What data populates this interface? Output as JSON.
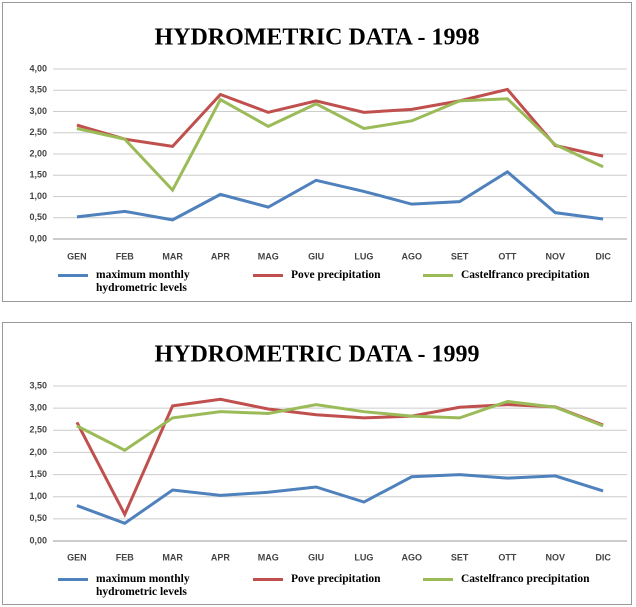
{
  "chart_data": [
    {
      "type": "line",
      "title": "HYDROMETRIC DATA - 1998",
      "categories": [
        "GEN",
        "FEB",
        "MAR",
        "APR",
        "MAG",
        "GIU",
        "LUG",
        "AGO",
        "SET",
        "OTT",
        "NOV",
        "DIC"
      ],
      "series": [
        {
          "name": "maximum monthly hydrometric levels",
          "color": "#4f81bd",
          "values": [
            0.52,
            0.65,
            0.45,
            1.05,
            0.75,
            1.38,
            1.12,
            0.82,
            0.88,
            1.58,
            0.62,
            0.47
          ]
        },
        {
          "name": "Pove precipitation",
          "color": "#c0504d",
          "values": [
            2.68,
            2.35,
            2.18,
            3.4,
            2.98,
            3.25,
            2.98,
            3.05,
            3.25,
            3.52,
            2.2,
            1.95
          ]
        },
        {
          "name": "Castelfranco precipitation",
          "color": "#9bbb59",
          "values": [
            2.6,
            2.35,
            1.15,
            3.28,
            2.65,
            3.18,
            2.6,
            2.78,
            3.25,
            3.3,
            2.22,
            1.7
          ]
        }
      ],
      "ylim": [
        0,
        4
      ],
      "yticks": [
        {
          "value": 0,
          "label": "0,00"
        },
        {
          "value": 0.5,
          "label": "0,50"
        },
        {
          "value": 1,
          "label": "1,00"
        },
        {
          "value": 1.5,
          "label": "1,50"
        },
        {
          "value": 2,
          "label": "2,00"
        },
        {
          "value": 2.5,
          "label": "2,50"
        },
        {
          "value": 3,
          "label": "3,00"
        },
        {
          "value": 3.5,
          "label": "3,50"
        },
        {
          "value": 4,
          "label": "4,00"
        }
      ],
      "grid": true,
      "legend": "bottom"
    },
    {
      "type": "line",
      "title": "HYDROMETRIC DATA - 1999",
      "categories": [
        "GEN",
        "FEB",
        "MAR",
        "APR",
        "MAG",
        "GIU",
        "LUG",
        "AGO",
        "SET",
        "OTT",
        "NOV",
        "DIC"
      ],
      "series": [
        {
          "name": "maximum monthly hydrometric levels",
          "color": "#4f81bd",
          "values": [
            0.8,
            0.4,
            1.15,
            1.03,
            1.1,
            1.22,
            0.88,
            1.45,
            1.5,
            1.42,
            1.47,
            1.13
          ]
        },
        {
          "name": "Pove precipitation",
          "color": "#c0504d",
          "values": [
            2.68,
            0.6,
            3.05,
            3.2,
            2.98,
            2.85,
            2.78,
            2.82,
            3.02,
            3.08,
            3.03,
            2.62
          ]
        },
        {
          "name": "Castelfranco precipitation",
          "color": "#9bbb59",
          "values": [
            2.6,
            2.05,
            2.78,
            2.92,
            2.88,
            3.08,
            2.92,
            2.82,
            2.78,
            3.15,
            3.02,
            2.6
          ]
        }
      ],
      "ylim": [
        0,
        3.5
      ],
      "yticks": [
        {
          "value": 0,
          "label": "0,00"
        },
        {
          "value": 0.5,
          "label": "0,50"
        },
        {
          "value": 1,
          "label": "1,00"
        },
        {
          "value": 1.5,
          "label": "1,50"
        },
        {
          "value": 2,
          "label": "2,00"
        },
        {
          "value": 2.5,
          "label": "2,50"
        },
        {
          "value": 3,
          "label": "3,00"
        },
        {
          "value": 3.5,
          "label": "3,50"
        }
      ],
      "grid": true,
      "legend": "bottom"
    }
  ]
}
